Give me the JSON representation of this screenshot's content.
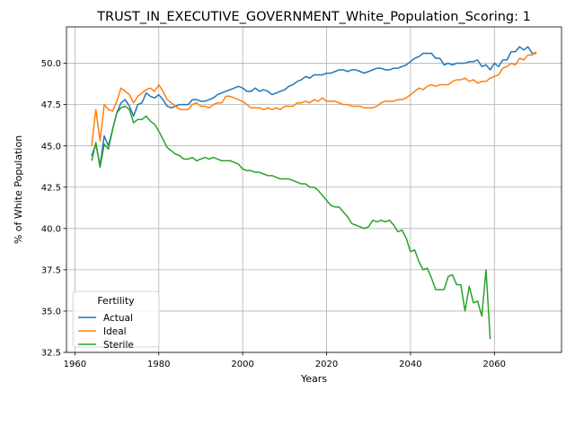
{
  "chart_data": {
    "type": "line",
    "title": "TRUST_IN_EXECUTIVE_GOVERNMENT_White_Population_Scoring: 1",
    "xlabel": "Years",
    "ylabel": "% of White Population",
    "xlim": [
      1958,
      2076
    ],
    "ylim": [
      32.5,
      52.2
    ],
    "xticks": [
      1960,
      1980,
      2000,
      2020,
      2040,
      2060
    ],
    "yticks": [
      32.5,
      35.0,
      37.5,
      40.0,
      42.5,
      45.0,
      47.5,
      50.0
    ],
    "grid": true,
    "legend": {
      "title": "Fertility",
      "placement": "lower-left"
    },
    "series": [
      {
        "name": "Actual",
        "color": "#1f77b4",
        "x": [
          1964,
          1965,
          1966,
          1967,
          1968,
          1969,
          1970,
          1971,
          1972,
          1973,
          1974,
          1975,
          1976,
          1977,
          1978,
          1979,
          1980,
          1981,
          1982,
          1983,
          1984,
          1985,
          1986,
          1987,
          1988,
          1989,
          1990,
          1991,
          1992,
          1993,
          1994,
          1995,
          1996,
          1997,
          1998,
          1999,
          2000,
          2001,
          2002,
          2003,
          2004,
          2005,
          2006,
          2007,
          2008,
          2009,
          2010,
          2011,
          2012,
          2013,
          2014,
          2015,
          2016,
          2017,
          2018,
          2019,
          2020,
          2021,
          2022,
          2023,
          2024,
          2025,
          2026,
          2027,
          2028,
          2029,
          2030,
          2031,
          2032,
          2033,
          2034,
          2035,
          2036,
          2037,
          2038,
          2039,
          2040,
          2041,
          2042,
          2043,
          2044,
          2045,
          2046,
          2047,
          2048,
          2049,
          2050,
          2051,
          2052,
          2053,
          2054,
          2055,
          2056,
          2057,
          2058,
          2059,
          2060,
          2061,
          2062,
          2063,
          2064,
          2065,
          2066,
          2067,
          2068,
          2069,
          2070
        ],
        "values": [
          44.4,
          45.1,
          43.8,
          45.6,
          45.0,
          46.0,
          47.0,
          47.6,
          47.8,
          47.4,
          46.8,
          47.5,
          47.6,
          48.2,
          48.0,
          47.9,
          48.1,
          47.8,
          47.4,
          47.3,
          47.4,
          47.5,
          47.5,
          47.5,
          47.8,
          47.8,
          47.7,
          47.7,
          47.8,
          47.9,
          48.1,
          48.2,
          48.3,
          48.4,
          48.5,
          48.6,
          48.5,
          48.3,
          48.3,
          48.5,
          48.3,
          48.4,
          48.3,
          48.1,
          48.2,
          48.3,
          48.4,
          48.6,
          48.7,
          48.9,
          49.0,
          49.2,
          49.1,
          49.3,
          49.3,
          49.3,
          49.4,
          49.4,
          49.5,
          49.6,
          49.6,
          49.5,
          49.6,
          49.6,
          49.5,
          49.4,
          49.5,
          49.6,
          49.7,
          49.7,
          49.6,
          49.6,
          49.7,
          49.7,
          49.8,
          49.9,
          50.1,
          50.3,
          50.4,
          50.6,
          50.6,
          50.6,
          50.3,
          50.3,
          49.9,
          50.0,
          49.9,
          50.0,
          50.0,
          50.0,
          50.1,
          50.1,
          50.2,
          49.8,
          49.9,
          49.6,
          50.0,
          49.8,
          50.2,
          50.2,
          50.7,
          50.7,
          51.0,
          50.8,
          51.0,
          50.6,
          50.6
        ]
      },
      {
        "name": "Ideal",
        "color": "#ff7f0e",
        "x": [
          1964,
          1965,
          1966,
          1967,
          1968,
          1969,
          1970,
          1971,
          1972,
          1973,
          1974,
          1975,
          1976,
          1977,
          1978,
          1979,
          1980,
          1981,
          1982,
          1983,
          1984,
          1985,
          1986,
          1987,
          1988,
          1989,
          1990,
          1991,
          1992,
          1993,
          1994,
          1995,
          1996,
          1997,
          1998,
          1999,
          2000,
          2001,
          2002,
          2003,
          2004,
          2005,
          2006,
          2007,
          2008,
          2009,
          2010,
          2011,
          2012,
          2013,
          2014,
          2015,
          2016,
          2017,
          2018,
          2019,
          2020,
          2021,
          2022,
          2023,
          2024,
          2025,
          2026,
          2027,
          2028,
          2029,
          2030,
          2031,
          2032,
          2033,
          2034,
          2035,
          2036,
          2037,
          2038,
          2039,
          2040,
          2041,
          2042,
          2043,
          2044,
          2045,
          2046,
          2047,
          2048,
          2049,
          2050,
          2051,
          2052,
          2053,
          2054,
          2055,
          2056,
          2057,
          2058,
          2059,
          2060,
          2061,
          2062,
          2063,
          2064,
          2065,
          2066,
          2067,
          2068,
          2069,
          2070
        ],
        "values": [
          45.0,
          47.2,
          45.3,
          47.5,
          47.2,
          47.1,
          47.7,
          48.5,
          48.3,
          48.1,
          47.6,
          48.0,
          48.2,
          48.4,
          48.5,
          48.3,
          48.7,
          48.3,
          47.8,
          47.6,
          47.4,
          47.2,
          47.2,
          47.2,
          47.5,
          47.6,
          47.4,
          47.4,
          47.3,
          47.5,
          47.6,
          47.6,
          48.0,
          48.0,
          47.9,
          47.8,
          47.7,
          47.5,
          47.3,
          47.3,
          47.3,
          47.2,
          47.3,
          47.2,
          47.3,
          47.2,
          47.4,
          47.4,
          47.4,
          47.6,
          47.6,
          47.7,
          47.6,
          47.8,
          47.7,
          47.9,
          47.7,
          47.7,
          47.7,
          47.6,
          47.5,
          47.5,
          47.4,
          47.4,
          47.4,
          47.3,
          47.3,
          47.3,
          47.4,
          47.6,
          47.7,
          47.7,
          47.7,
          47.8,
          47.8,
          47.9,
          48.1,
          48.3,
          48.5,
          48.4,
          48.6,
          48.7,
          48.6,
          48.7,
          48.7,
          48.7,
          48.9,
          49.0,
          49.0,
          49.1,
          48.9,
          49.0,
          48.8,
          48.9,
          48.9,
          49.1,
          49.2,
          49.3,
          49.7,
          49.8,
          50.0,
          49.9,
          50.3,
          50.2,
          50.5,
          50.5,
          50.7
        ]
      },
      {
        "name": "Sterile",
        "color": "#2ca02c",
        "x": [
          1964,
          1965,
          1966,
          1967,
          1968,
          1969,
          1970,
          1971,
          1972,
          1973,
          1974,
          1975,
          1976,
          1977,
          1978,
          1979,
          1980,
          1981,
          1982,
          1983,
          1984,
          1985,
          1986,
          1987,
          1988,
          1989,
          1990,
          1991,
          1992,
          1993,
          1994,
          1995,
          1996,
          1997,
          1998,
          1999,
          2000,
          2001,
          2002,
          2003,
          2004,
          2005,
          2006,
          2007,
          2008,
          2009,
          2010,
          2011,
          2012,
          2013,
          2014,
          2015,
          2016,
          2017,
          2018,
          2019,
          2020,
          2021,
          2022,
          2023,
          2024,
          2025,
          2026,
          2027,
          2028,
          2029,
          2030,
          2031,
          2032,
          2033,
          2034,
          2035,
          2036,
          2037,
          2038,
          2039,
          2040,
          2041,
          2042,
          2043,
          2044,
          2045,
          2046,
          2047,
          2048,
          2049,
          2050,
          2051,
          2052,
          2053,
          2054,
          2055,
          2056,
          2057,
          2058,
          2059
        ],
        "values": [
          44.1,
          45.2,
          43.7,
          45.1,
          44.8,
          46.0,
          47.0,
          47.3,
          47.4,
          47.2,
          46.4,
          46.6,
          46.6,
          46.8,
          46.5,
          46.3,
          45.9,
          45.4,
          44.9,
          44.7,
          44.5,
          44.4,
          44.2,
          44.2,
          44.3,
          44.1,
          44.2,
          44.3,
          44.2,
          44.3,
          44.2,
          44.1,
          44.1,
          44.1,
          44.0,
          43.9,
          43.6,
          43.5,
          43.5,
          43.4,
          43.4,
          43.3,
          43.2,
          43.2,
          43.1,
          43.0,
          43.0,
          43.0,
          42.9,
          42.8,
          42.7,
          42.7,
          42.5,
          42.5,
          42.3,
          42.0,
          41.7,
          41.4,
          41.3,
          41.3,
          41.0,
          40.7,
          40.3,
          40.2,
          40.1,
          40.0,
          40.1,
          40.5,
          40.4,
          40.5,
          40.4,
          40.5,
          40.2,
          39.8,
          39.9,
          39.4,
          38.6,
          38.7,
          38.0,
          37.5,
          37.6,
          37.0,
          36.3,
          36.3,
          36.3,
          37.1,
          37.2,
          36.6,
          36.6,
          35.0,
          36.5,
          35.5,
          35.6,
          34.7,
          37.5,
          33.3
        ]
      }
    ]
  }
}
